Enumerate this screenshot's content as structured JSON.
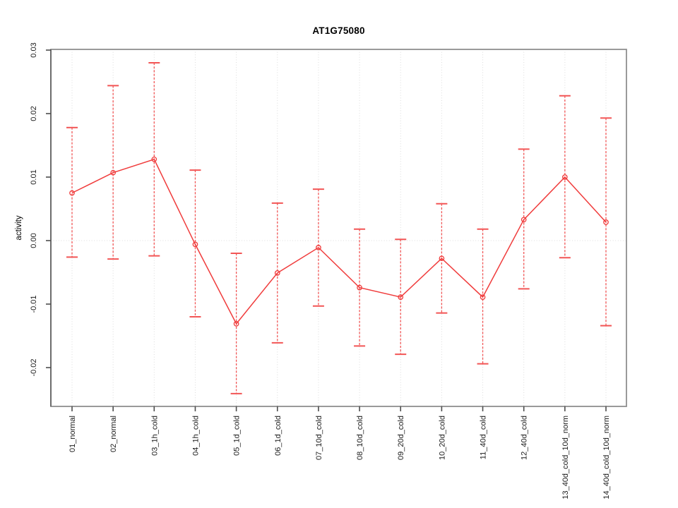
{
  "chart_data": {
    "type": "line",
    "title": "AT1G75080",
    "xlabel": "",
    "ylabel": "activity",
    "legend_position": "none",
    "grid": "dotted vertical gridline at each category plus dotted horizontal line at 0",
    "marker": "open-circle",
    "error_bar_style": "dashed vertical line with horizontal caps",
    "categories": [
      "01_normal",
      "02_normal",
      "03_1h_cold",
      "04_1h_cold",
      "05_1d_cold",
      "06_1d_cold",
      "07_10d_cold",
      "08_10d_cold",
      "09_20d_cold",
      "10_20d_cold",
      "11_40d_cold",
      "12_40d_cold",
      "13_40d_cold_10d_norm",
      "14_40d_cold_10d_norm"
    ],
    "series": [
      {
        "name": "activity",
        "values": [
          0.0075,
          0.0107,
          0.0128,
          -0.0006,
          -0.0131,
          -0.0051,
          -0.0011,
          -0.0074,
          -0.0089,
          -0.0028,
          -0.0089,
          0.0033,
          0.01,
          0.0029
        ],
        "upper": [
          0.0178,
          0.0244,
          0.028,
          0.0111,
          -0.002,
          0.0059,
          0.0081,
          0.0018,
          0.0002,
          0.0058,
          0.0018,
          0.0144,
          0.0228,
          0.0193
        ],
        "lower": [
          -0.0026,
          -0.0029,
          -0.0024,
          -0.012,
          -0.0241,
          -0.0161,
          -0.0103,
          -0.0166,
          -0.0179,
          -0.0114,
          -0.0194,
          -0.0076,
          -0.0027,
          -0.0134
        ]
      }
    ],
    "y_ticks": [
      {
        "label": "0.03",
        "value": 0.03
      },
      {
        "label": "0.02",
        "value": 0.02
      },
      {
        "label": "0.01",
        "value": 0.01
      },
      {
        "label": "0.00",
        "value": 0.0
      },
      {
        "label": "-0.01",
        "value": -0.01
      },
      {
        "label": "-0.02",
        "value": -0.02
      }
    ],
    "ylim": [
      -0.0261,
      0.0301
    ],
    "colors": {
      "series": "#f03c3c",
      "error_bar": "#f25555",
      "grid": "#dcdcdc",
      "box": "#8f8f8f",
      "axis": "#666666",
      "tick": "#4d4d4d",
      "text": "#1a1a1a",
      "background": "#ffffff"
    }
  }
}
